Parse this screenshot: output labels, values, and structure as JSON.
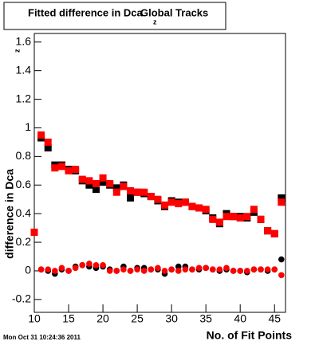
{
  "chart_data": {
    "type": "scatter",
    "title": "Fitted difference in Dca",
    "title_subscript": "z",
    "title_suffix": "Global Tracks",
    "y_label": "difference in Dca",
    "y_label_subscript": "z",
    "x_label": "No. of Fit Points",
    "timestamp": "Mon Oct 31 10:24:36 2011",
    "xlim": [
      10,
      46.6
    ],
    "ylim": [
      -0.29,
      1.66
    ],
    "xticks": [
      10,
      15,
      20,
      25,
      30,
      35,
      40,
      45
    ],
    "yticks": [
      -0.2,
      0,
      0.2,
      0.4,
      0.6,
      0.8,
      1,
      1.2,
      1.4,
      1.6
    ],
    "grid": false,
    "series": [
      {
        "color": "#000000",
        "marker": "square",
        "x": [
          10,
          11,
          12,
          13,
          14,
          15,
          16,
          17,
          18,
          19,
          20,
          21,
          22,
          23,
          24,
          25,
          26,
          27,
          28,
          29,
          30,
          31,
          32,
          33,
          34,
          35,
          36,
          37,
          38,
          39,
          40,
          41,
          42,
          43,
          44,
          45,
          46
        ],
        "values": [
          0.27,
          0.93,
          0.86,
          0.74,
          0.74,
          0.71,
          0.7,
          0.63,
          0.6,
          0.57,
          0.62,
          0.6,
          0.58,
          0.6,
          0.51,
          0.55,
          0.54,
          0.52,
          0.49,
          0.45,
          0.49,
          0.48,
          0.48,
          0.45,
          0.44,
          0.42,
          0.37,
          0.33,
          0.4,
          0.38,
          0.38,
          0.37,
          0.41,
          0.36,
          0.28,
          0.26,
          0.51
        ]
      },
      {
        "color": "#ff0000",
        "marker": "square",
        "x": [
          10,
          11,
          12,
          13,
          14,
          15,
          16,
          17,
          18,
          19,
          20,
          21,
          22,
          23,
          24,
          25,
          26,
          27,
          28,
          29,
          30,
          31,
          32,
          33,
          34,
          35,
          36,
          37,
          38,
          39,
          40,
          41,
          42,
          43,
          44,
          45,
          46
        ],
        "values": [
          0.27,
          0.95,
          0.9,
          0.72,
          0.73,
          0.7,
          0.71,
          0.64,
          0.63,
          0.61,
          0.65,
          0.61,
          0.55,
          0.59,
          0.56,
          0.55,
          0.55,
          0.52,
          0.5,
          0.46,
          0.48,
          0.47,
          0.48,
          0.45,
          0.44,
          0.43,
          0.36,
          0.34,
          0.38,
          0.38,
          0.37,
          0.38,
          0.43,
          0.36,
          0.28,
          0.26,
          0.48
        ]
      },
      {
        "color": "#000000",
        "marker": "circle",
        "x": [
          11,
          12,
          13,
          14,
          15,
          16,
          17,
          18,
          19,
          20,
          21,
          22,
          23,
          24,
          25,
          26,
          27,
          28,
          29,
          30,
          31,
          32,
          33,
          34,
          35,
          36,
          37,
          38,
          39,
          40,
          41,
          42,
          43,
          44,
          45,
          46
        ],
        "values": [
          0.01,
          0.0,
          -0.02,
          0.01,
          0.0,
          0.03,
          0.04,
          0.03,
          0.02,
          0.03,
          0.01,
          0.0,
          0.03,
          0.0,
          0.02,
          0.02,
          0.01,
          0.01,
          -0.02,
          0.01,
          0.03,
          0.03,
          0.01,
          0.01,
          0.02,
          0.01,
          0.0,
          0.01,
          0.0,
          0.0,
          -0.01,
          0.01,
          0.01,
          0.0,
          0.01,
          0.08
        ]
      },
      {
        "color": "#ff0000",
        "marker": "circle",
        "x": [
          11,
          12,
          13,
          14,
          15,
          16,
          17,
          18,
          19,
          20,
          21,
          22,
          23,
          24,
          25,
          26,
          27,
          28,
          29,
          30,
          31,
          32,
          33,
          34,
          35,
          36,
          37,
          38,
          39,
          40,
          41,
          42,
          43,
          44,
          45,
          46
        ],
        "values": [
          0.01,
          0.01,
          0.0,
          0.02,
          0.0,
          0.02,
          0.04,
          0.05,
          0.04,
          0.04,
          0.0,
          0.0,
          0.01,
          0.0,
          0.01,
          0.0,
          0.01,
          0.02,
          0.0,
          0.01,
          0.0,
          0.01,
          0.01,
          0.02,
          0.02,
          0.01,
          0.01,
          0.02,
          0.0,
          0.0,
          0.0,
          0.01,
          0.01,
          0.01,
          0.01,
          -0.03
        ]
      }
    ]
  }
}
